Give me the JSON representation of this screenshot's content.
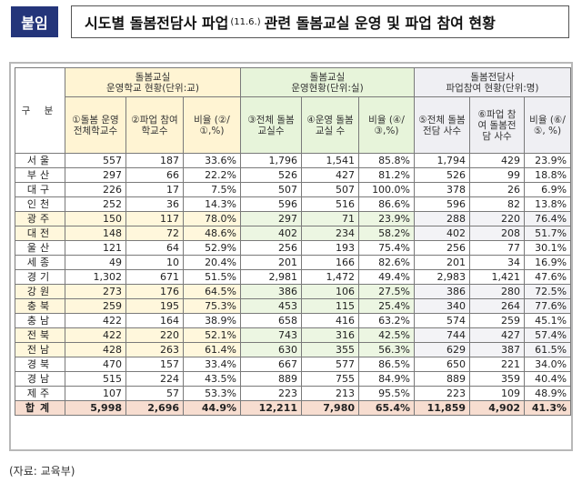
{
  "header": {
    "badge": "붙임",
    "title_main": "시도별 돌봄전담사 파업",
    "title_date": "(11.6.)",
    "title_rest": "관련 돌봄교실 운영 및 파업 참여 현황"
  },
  "table": {
    "col_region": "구 분",
    "group1": {
      "title": "돌봄교실",
      "subtitle": "운영학교 현황(단위:교)"
    },
    "group2": {
      "title": "돌봄교실",
      "subtitle": "운영현황(단위:실)"
    },
    "group3": {
      "title": "돌봄전담사",
      "subtitle": "파업참여 현황(단위:명)"
    },
    "cols": [
      "①돌봄 운영 전체학교수",
      "②파업 참여 학교수",
      "비율 (②/①,%)",
      "③전체 돌봄교실수",
      "④운영 돌봄교실 수",
      "비율 (④/③,%)",
      "⑤전체 돌봄전담 사수",
      "⑥파업 참여 돌봄전담 사수",
      "비율 (⑥/⑤, %)"
    ],
    "rows": [
      {
        "region": "서울",
        "v": [
          "557",
          "187",
          "33.6%",
          "1,796",
          "1,541",
          "85.8%",
          "1,794",
          "429",
          "23.9%"
        ]
      },
      {
        "region": "부산",
        "v": [
          "297",
          "66",
          "22.2%",
          "526",
          "427",
          "81.2%",
          "526",
          "99",
          "18.8%"
        ]
      },
      {
        "region": "대구",
        "v": [
          "226",
          "17",
          "7.5%",
          "507",
          "507",
          "100.0%",
          "378",
          "26",
          "6.9%"
        ]
      },
      {
        "region": "인천",
        "v": [
          "252",
          "36",
          "14.3%",
          "596",
          "516",
          "86.6%",
          "596",
          "82",
          "13.8%"
        ]
      },
      {
        "region": "광주",
        "v": [
          "150",
          "117",
          "78.0%",
          "297",
          "71",
          "23.9%",
          "288",
          "220",
          "76.4%"
        ]
      },
      {
        "region": "대전",
        "v": [
          "148",
          "72",
          "48.6%",
          "402",
          "234",
          "58.2%",
          "402",
          "208",
          "51.7%"
        ]
      },
      {
        "region": "울산",
        "v": [
          "121",
          "64",
          "52.9%",
          "256",
          "193",
          "75.4%",
          "256",
          "77",
          "30.1%"
        ]
      },
      {
        "region": "세종",
        "v": [
          "49",
          "10",
          "20.4%",
          "201",
          "166",
          "82.6%",
          "201",
          "34",
          "16.9%"
        ]
      },
      {
        "region": "경기",
        "v": [
          "1,302",
          "671",
          "51.5%",
          "2,981",
          "1,472",
          "49.4%",
          "2,983",
          "1,421",
          "47.6%"
        ]
      },
      {
        "region": "강원",
        "v": [
          "273",
          "176",
          "64.5%",
          "386",
          "106",
          "27.5%",
          "386",
          "280",
          "72.5%"
        ]
      },
      {
        "region": "충북",
        "v": [
          "259",
          "195",
          "75.3%",
          "453",
          "115",
          "25.4%",
          "340",
          "264",
          "77.6%"
        ]
      },
      {
        "region": "충남",
        "v": [
          "422",
          "164",
          "38.9%",
          "658",
          "416",
          "63.2%",
          "574",
          "259",
          "45.1%"
        ]
      },
      {
        "region": "전북",
        "v": [
          "422",
          "220",
          "52.1%",
          "743",
          "316",
          "42.5%",
          "744",
          "427",
          "57.4%"
        ]
      },
      {
        "region": "전남",
        "v": [
          "428",
          "263",
          "61.4%",
          "630",
          "355",
          "56.3%",
          "629",
          "387",
          "61.5%"
        ]
      },
      {
        "region": "경북",
        "v": [
          "470",
          "157",
          "33.4%",
          "667",
          "577",
          "86.5%",
          "650",
          "221",
          "34.0%"
        ]
      },
      {
        "region": "경남",
        "v": [
          "515",
          "224",
          "43.5%",
          "889",
          "755",
          "84.9%",
          "889",
          "359",
          "40.4%"
        ]
      },
      {
        "region": "제주",
        "v": [
          "107",
          "57",
          "53.3%",
          "223",
          "213",
          "95.5%",
          "223",
          "109",
          "48.9%"
        ]
      }
    ],
    "total": {
      "region": "합계",
      "v": [
        "5,998",
        "2,696",
        "44.9%",
        "12,211",
        "7,980",
        "65.4%",
        "11,859",
        "4,902",
        "41.3%"
      ]
    }
  },
  "source": "(자료: 교육부)"
}
